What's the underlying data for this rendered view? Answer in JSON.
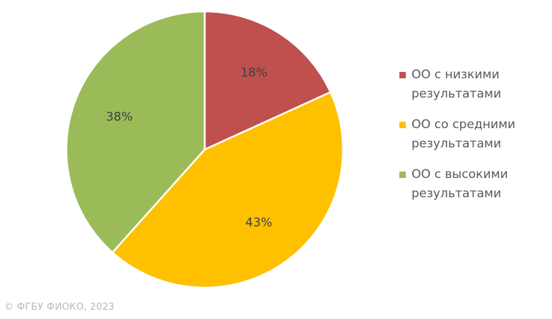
{
  "chart_data": {
    "type": "pie",
    "slices": [
      {
        "label": "ОО с низкими результатами",
        "value": 18,
        "display": "18%",
        "color": "#c0504d"
      },
      {
        "label": "ОО со средними результатами",
        "value": 43,
        "display": "43%",
        "color": "#ffc000"
      },
      {
        "label": "ОО с высокими результатами",
        "value": 38,
        "display": "38%",
        "color": "#9bbb59"
      }
    ],
    "legend_position": "right"
  },
  "footer": {
    "copyright": "© ФГБУ ФИОКО, 2023"
  }
}
